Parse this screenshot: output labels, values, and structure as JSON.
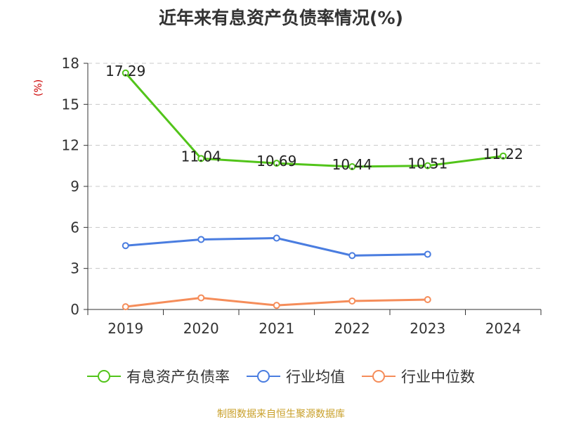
{
  "title": "近年来有息资产负债率情况(%)",
  "y_unit": "(%)",
  "source": "制图数据来自恒生聚源数据库",
  "colors": {
    "debt_ratio": "#52c41a",
    "industry_mean": "#4a7de0",
    "industry_median": "#f58d5a"
  },
  "chart_data": {
    "type": "line",
    "categories": [
      "2019",
      "2020",
      "2021",
      "2022",
      "2023",
      "2024"
    ],
    "ylim": [
      0,
      18
    ],
    "yticks": [
      0,
      3,
      6,
      9,
      12,
      15,
      18
    ],
    "grid": true,
    "legend_position": "bottom",
    "series": [
      {
        "name": "有息资产负债率",
        "values": [
          17.29,
          11.04,
          10.69,
          10.44,
          10.51,
          11.22
        ],
        "labeled": true
      },
      {
        "name": "行业均值",
        "values": [
          4.67,
          5.12,
          5.22,
          3.94,
          4.04,
          null
        ],
        "labeled": false
      },
      {
        "name": "行业中位数",
        "values": [
          0.2,
          0.85,
          0.3,
          0.62,
          0.72,
          null
        ],
        "labeled": false
      }
    ]
  }
}
